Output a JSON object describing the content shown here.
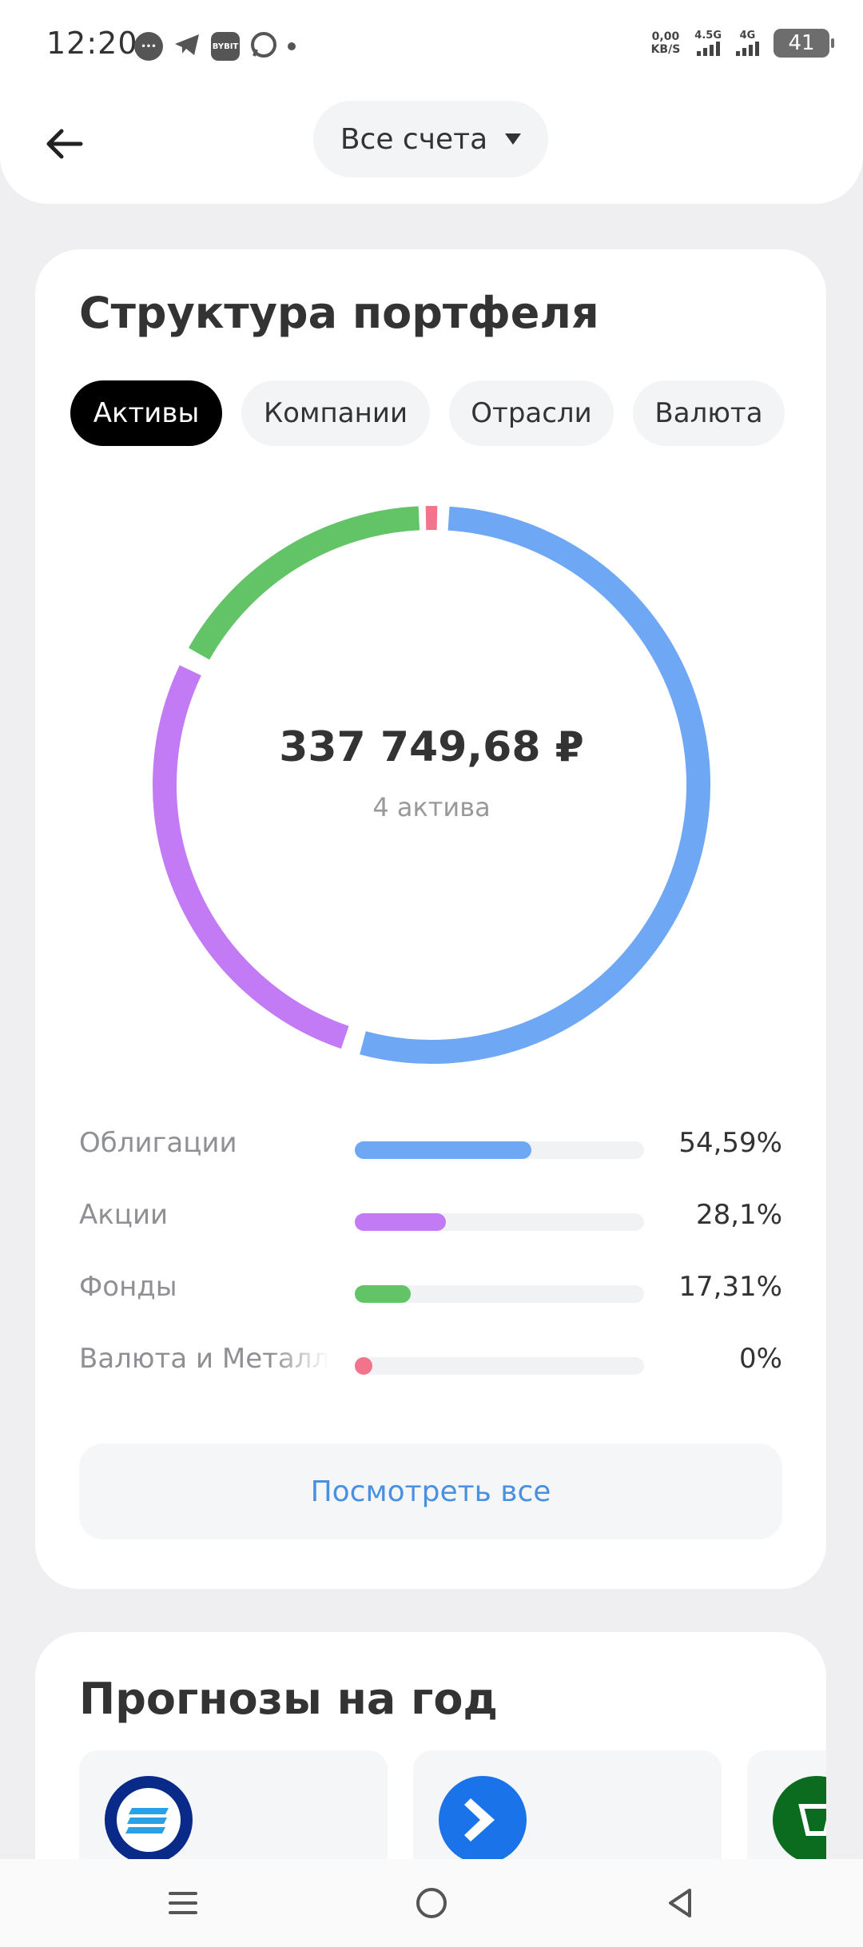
{
  "status_bar": {
    "time": "12:20",
    "icons": [
      "message-icon",
      "telegram-icon",
      "bybit-icon",
      "whatsapp-icon"
    ],
    "bybit_label": "BYBIT",
    "net_speed": "0,00",
    "net_unit": "KB/S",
    "signal1_label": "4.5G",
    "signal2_label": "4G",
    "battery": "41"
  },
  "header": {
    "account_label": "Все счета"
  },
  "portfolio": {
    "title": "Структура портфеля",
    "tabs": [
      {
        "label": "Активы",
        "active": true
      },
      {
        "label": "Компании",
        "active": false
      },
      {
        "label": "Отрасли",
        "active": false
      },
      {
        "label": "Валюта",
        "active": false
      }
    ],
    "total": "337 749,68 ₽",
    "subtitle": "4 актива",
    "view_all": "Посмотреть все"
  },
  "chart_data": {
    "type": "pie",
    "categories": [
      "Облигации",
      "Акции",
      "Фонды",
      "Валюта и Металлы"
    ],
    "values": [
      54.59,
      28.1,
      17.31,
      0
    ],
    "value_labels": [
      "54,59%",
      "28,1%",
      "17,31%",
      "0%"
    ],
    "colors": [
      "#6ea8f5",
      "#c27af5",
      "#62c466",
      "#f2738c"
    ]
  },
  "forecast": {
    "title": "Прогнозы на год"
  },
  "colors": {
    "accent_link": "#4a90e2",
    "tab_active_bg": "#000000"
  }
}
